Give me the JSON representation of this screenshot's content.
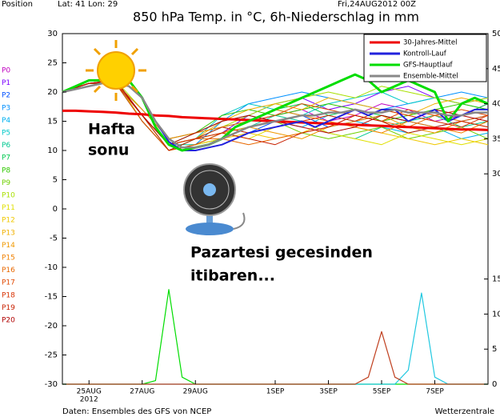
{
  "chart_data": {
    "type": "line",
    "header": {
      "position": "Position",
      "latlon": "Lat: 41  Lon: 29",
      "run": "Fri,24AUG2012 00Z"
    },
    "title": "850 hPa Temp. in °C, 6h-Niederschlag in mm",
    "footer_left": "Daten: Ensembles des GFS von NCEP",
    "footer_right": "Wetterzentrale",
    "annotations": [
      "Hafta",
      "sonu",
      "Pazartesi gecesinden",
      "itibaren..."
    ],
    "xlim": [
      0,
      16
    ],
    "xticks": [
      {
        "value": 1,
        "label": "25AUG"
      },
      {
        "value": 3,
        "label": "27AUG"
      },
      {
        "value": 5,
        "label": "29AUG"
      },
      {
        "value": 8,
        "label": "1SEP"
      },
      {
        "value": 10,
        "label": "3SEP"
      },
      {
        "value": 12,
        "label": "5SEP"
      },
      {
        "value": 14,
        "label": "7SEP"
      }
    ],
    "x_year": "2012",
    "ylim": [
      -30,
      30
    ],
    "yticks": [
      30,
      25,
      20,
      15,
      10,
      5,
      0,
      -5,
      -10,
      -15,
      -20,
      -25,
      -30
    ],
    "y2lim": [
      0,
      50
    ],
    "y2ticks": [
      50,
      45,
      40,
      35,
      30,
      15,
      10,
      5,
      0
    ],
    "grid": false,
    "x": [
      0,
      0.5,
      1,
      1.5,
      2,
      2.5,
      3,
      3.5,
      4,
      4.5,
      5,
      5.5,
      6,
      6.5,
      7,
      7.5,
      8,
      8.5,
      9,
      9.5,
      10,
      10.5,
      11,
      11.5,
      12,
      12.5,
      13,
      13.5,
      14,
      14.5,
      15,
      15.5,
      16
    ],
    "series": [
      {
        "name": "30-Jahres-Mittel",
        "color": "#ee0000",
        "values": [
          16.8,
          16.8,
          16.7,
          16.6,
          16.5,
          16.3,
          16.2,
          16.0,
          15.9,
          15.7,
          15.6,
          15.5,
          15.4,
          15.3,
          15.2,
          15.1,
          15.0,
          14.9,
          14.8,
          14.7,
          14.6,
          14.5,
          14.4,
          14.3,
          14.2,
          14.1,
          14.0,
          13.9,
          13.8,
          13.7,
          13.6,
          13.6,
          13.5
        ]
      },
      {
        "name": "Kontroll-Lauf",
        "color": "#2222dd",
        "values": [
          20,
          20.5,
          21,
          21.5,
          21.5,
          21,
          19,
          15,
          11.5,
          10,
          10,
          10.5,
          11,
          12,
          13,
          13.5,
          14,
          14.5,
          15,
          14,
          15,
          16,
          17,
          16,
          17,
          17,
          15,
          16,
          17,
          15,
          16,
          17,
          17
        ]
      },
      {
        "name": "GFS-Hauptlauf",
        "color": "#00dd00",
        "values": [
          20,
          21,
          22,
          22,
          22.5,
          22,
          19,
          14,
          11,
          10,
          10.5,
          11,
          12,
          14,
          15,
          16,
          17,
          18,
          19,
          20,
          21,
          22,
          23,
          22,
          20,
          21,
          22,
          21,
          20,
          15,
          18,
          19,
          18
        ]
      },
      {
        "name": "Ensemble-Mittel",
        "color": "#888888",
        "values": [
          20,
          20.5,
          21,
          21.5,
          21.5,
          21,
          19,
          15,
          12,
          10.5,
          10.5,
          11,
          12,
          13,
          14,
          14.5,
          15,
          15.5,
          16,
          16,
          16.5,
          16.5,
          17,
          16.5,
          16.5,
          17,
          16.5,
          16.5,
          16.5,
          16,
          16,
          16.5,
          16.5
        ]
      }
    ],
    "member_x": [
      0,
      1,
      2,
      3,
      4,
      5,
      6,
      7,
      8,
      9,
      10,
      11,
      12,
      13,
      14,
      15,
      16
    ],
    "members": [
      {
        "name": "P0",
        "color": "#c000c0",
        "values": [
          20,
          21.5,
          21.5,
          16,
          11,
          12,
          14,
          15,
          16,
          17,
          15,
          16,
          18,
          17,
          15,
          16,
          18
        ]
      },
      {
        "name": "P1",
        "color": "#7a00ff",
        "values": [
          20,
          21.5,
          22,
          15,
          10,
          11,
          13,
          16,
          18,
          19,
          17,
          18,
          20,
          21,
          19,
          18,
          19
        ]
      },
      {
        "name": "P2",
        "color": "#0050ff",
        "values": [
          20,
          21.5,
          21.5,
          16,
          11,
          12,
          14,
          13,
          15,
          16,
          14,
          15,
          16,
          15,
          14,
          15,
          16
        ]
      },
      {
        "name": "P3",
        "color": "#0090ff",
        "values": [
          20,
          21.5,
          22,
          16,
          10,
          11,
          15,
          18,
          19,
          20,
          19,
          18,
          17,
          18,
          19,
          20,
          19
        ]
      },
      {
        "name": "P4",
        "color": "#00b0f0",
        "values": [
          20,
          21.5,
          21.5,
          17,
          12,
          13,
          15,
          16,
          15,
          14,
          16,
          15,
          14,
          13,
          14,
          12,
          13
        ]
      },
      {
        "name": "P5",
        "color": "#00c8c8",
        "values": [
          20,
          21.5,
          22,
          15,
          10,
          12,
          16,
          18,
          17,
          16,
          18,
          19,
          20,
          18,
          19,
          18,
          17
        ]
      },
      {
        "name": "P6",
        "color": "#00c890",
        "values": [
          20,
          21.5,
          21.5,
          16,
          11,
          11,
          13,
          14,
          16,
          15,
          13,
          12,
          14,
          15,
          16,
          14,
          15
        ]
      },
      {
        "name": "P7",
        "color": "#00c850",
        "values": [
          20,
          21.5,
          21.5,
          15,
          10,
          12,
          14,
          15,
          17,
          18,
          16,
          17,
          16,
          15,
          17,
          16,
          18
        ]
      },
      {
        "name": "P8",
        "color": "#30c800",
        "values": [
          20,
          21.5,
          22,
          16,
          11,
          13,
          16,
          17,
          16,
          17,
          18,
          17,
          15,
          16,
          17,
          18,
          17
        ]
      },
      {
        "name": "P9",
        "color": "#70d000",
        "values": [
          20,
          21.5,
          21.5,
          16,
          10,
          11,
          12,
          14,
          15,
          13,
          12,
          13,
          14,
          12,
          13,
          14,
          12
        ]
      },
      {
        "name": "P10",
        "color": "#a8e000",
        "values": [
          20,
          21.5,
          22,
          17,
          12,
          13,
          14,
          16,
          18,
          19,
          20,
          19,
          21,
          20,
          19,
          18,
          19
        ]
      },
      {
        "name": "P11",
        "color": "#e0e000",
        "values": [
          20,
          21.5,
          21.5,
          16,
          11,
          12,
          13,
          12,
          14,
          15,
          13,
          12,
          11,
          13,
          12,
          11,
          12
        ]
      },
      {
        "name": "P12",
        "color": "#f0c800",
        "values": [
          20,
          21.5,
          22,
          15,
          10,
          11,
          12,
          13,
          12,
          13,
          15,
          14,
          13,
          12,
          11,
          12,
          11
        ]
      },
      {
        "name": "P13",
        "color": "#f0b000",
        "values": [
          20,
          21.5,
          21.5,
          16,
          11,
          12,
          15,
          17,
          18,
          17,
          19,
          18,
          17,
          16,
          18,
          19,
          18
        ]
      },
      {
        "name": "P14",
        "color": "#f09800",
        "values": [
          20,
          21.5,
          22,
          16,
          10,
          11,
          13,
          14,
          13,
          12,
          14,
          15,
          16,
          14,
          13,
          15,
          14
        ]
      },
      {
        "name": "P15",
        "color": "#f08000",
        "values": [
          20,
          21.5,
          21.5,
          17,
          12,
          13,
          14,
          15,
          17,
          16,
          15,
          14,
          13,
          15,
          14,
          13,
          15
        ]
      },
      {
        "name": "P16",
        "color": "#e86800",
        "values": [
          20,
          21.5,
          22,
          16,
          11,
          12,
          12,
          11,
          12,
          13,
          14,
          16,
          15,
          14,
          16,
          15,
          16
        ]
      },
      {
        "name": "P17",
        "color": "#e04800",
        "values": [
          20,
          21.5,
          21.5,
          15,
          10,
          11,
          13,
          15,
          16,
          18,
          17,
          16,
          15,
          17,
          16,
          17,
          16
        ]
      },
      {
        "name": "P18",
        "color": "#d83000",
        "values": [
          20,
          21.5,
          22,
          16,
          11,
          12,
          14,
          13,
          14,
          15,
          16,
          15,
          17,
          16,
          15,
          14,
          16
        ]
      },
      {
        "name": "P19",
        "color": "#c82000",
        "values": [
          20,
          21.5,
          21.5,
          16,
          10,
          12,
          13,
          12,
          11,
          13,
          14,
          16,
          15,
          13,
          14,
          15,
          14
        ]
      },
      {
        "name": "P20",
        "color": "#b00000",
        "values": [
          20,
          21.5,
          22,
          16,
          11,
          13,
          15,
          16,
          15,
          14,
          13,
          14,
          16,
          15,
          17,
          16,
          15
        ]
      }
    ],
    "precipitation": [
      {
        "color": "#00dd00",
        "axis": "y2",
        "values": [
          0,
          0,
          0,
          0,
          0,
          0,
          0,
          0.5,
          13.5,
          1,
          0,
          0,
          0,
          0,
          0,
          0,
          0,
          0,
          0,
          0,
          0,
          0,
          0,
          0,
          0,
          0,
          0,
          0,
          0,
          0,
          0,
          0,
          0
        ]
      },
      {
        "color": "#20c8e0",
        "axis": "y2",
        "values": [
          0,
          0,
          0,
          0,
          0,
          0,
          0,
          0,
          0,
          0,
          0,
          0,
          0,
          0,
          0,
          0,
          0,
          0,
          0,
          0,
          0,
          0,
          0,
          0,
          0,
          0,
          2,
          13,
          1,
          0,
          0,
          0,
          0
        ]
      },
      {
        "color": "#c04020",
        "axis": "y2",
        "values": [
          0,
          0,
          0,
          0,
          0,
          0,
          0,
          0,
          0,
          0,
          0,
          0,
          0,
          0,
          0,
          0,
          0,
          0,
          0,
          0,
          0,
          0,
          0,
          1,
          7.5,
          1,
          0,
          0,
          0,
          0,
          0,
          0,
          0
        ]
      }
    ]
  }
}
